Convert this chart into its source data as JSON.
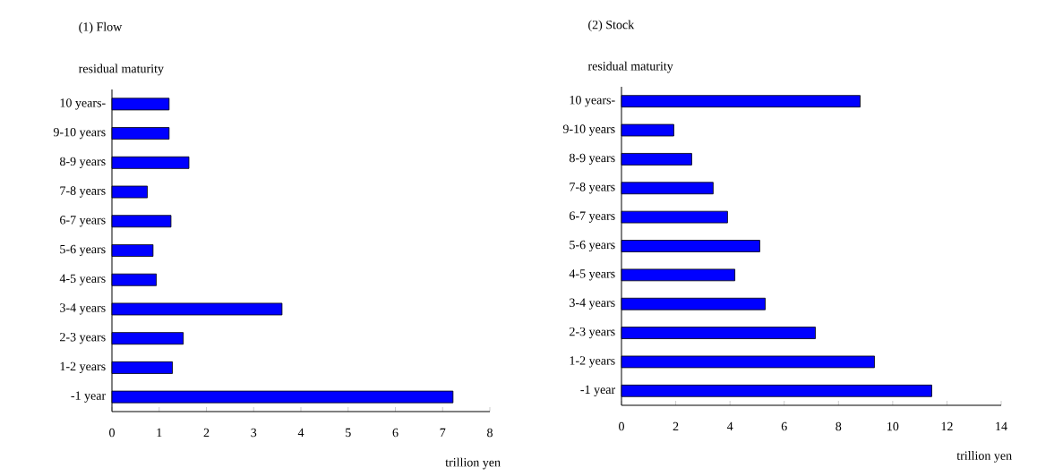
{
  "chart_data": [
    {
      "type": "bar",
      "orientation": "horizontal",
      "title": "(1) Flow",
      "ylabel": "residual maturity",
      "xlabel": "trillion yen",
      "categories": [
        "10 years-",
        "9-10 years",
        "8-9 years",
        "7-8 years",
        "6-7 years",
        "5-6 years",
        "4-5 years",
        "3-4 years",
        "2-3 years",
        "1-2 years",
        "-1 year"
      ],
      "values": [
        1.21,
        1.21,
        1.63,
        0.75,
        1.25,
        0.87,
        0.94,
        3.6,
        1.51,
        1.28,
        7.22
      ],
      "color": "#0000ff",
      "xlim": [
        0,
        8
      ],
      "xticks": [
        0,
        1,
        2,
        3,
        4,
        5,
        6,
        7,
        8
      ]
    },
    {
      "type": "bar",
      "orientation": "horizontal",
      "title": "(2) Stock",
      "ylabel": "residual maturity",
      "xlabel": "trillion yen",
      "categories": [
        "10 years-",
        "9-10 years",
        "8-9 years",
        "7-8 years",
        "6-7 years",
        "5-6 years",
        "4-5 years",
        "3-4 years",
        "2-3 years",
        "1-2 years",
        "-1 year"
      ],
      "values": [
        8.8,
        1.93,
        2.59,
        3.38,
        3.91,
        5.1,
        4.18,
        5.3,
        7.15,
        9.33,
        11.44
      ],
      "color": "#0000ff",
      "xlim": [
        0,
        14
      ],
      "xticks": [
        0,
        2,
        4,
        6,
        8,
        10,
        12,
        14
      ]
    }
  ]
}
